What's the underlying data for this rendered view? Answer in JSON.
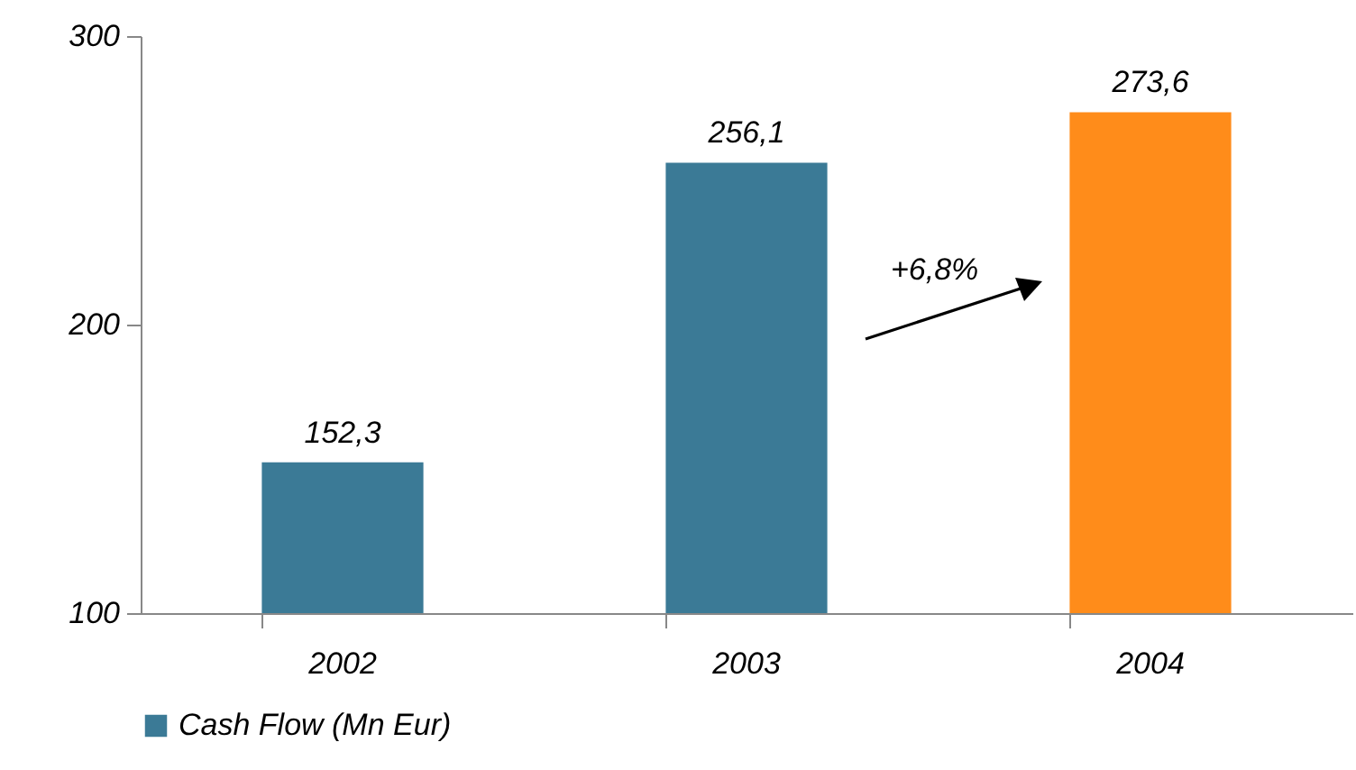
{
  "chart_data": {
    "type": "bar",
    "categories": [
      "2002",
      "2003",
      "2004"
    ],
    "series": [
      {
        "name": "Cash Flow (Mn Eur)",
        "color": "#3b7a96",
        "colors": [
          "#3b7a96",
          "#3b7a96",
          "#ff8c1a"
        ],
        "values": [
          152.3,
          256.1,
          273.6
        ],
        "value_labels": [
          "152,3",
          "256,1",
          "273,6"
        ]
      }
    ],
    "ylim": [
      100,
      300
    ],
    "yticks": [
      100,
      200,
      300
    ],
    "grid": false,
    "legend": "bottom",
    "annotations": [
      "+6,8%"
    ]
  }
}
